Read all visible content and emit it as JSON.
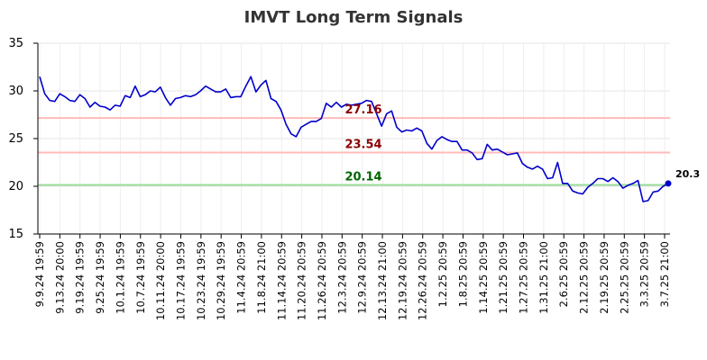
{
  "chart_data": {
    "type": "line",
    "title": "IMVT Long Term Signals",
    "xlabel": "",
    "ylabel": "",
    "ylim": [
      15,
      35
    ],
    "y_ticks": [
      15,
      20,
      25,
      30,
      35
    ],
    "grid": true,
    "line_color": "#0000cc",
    "x_tick_labels": [
      "9.9.24 19:59",
      "9.13.24 20:00",
      "9.19.24 19:59",
      "9.25.24 19:59",
      "10.1.24 19:59",
      "10.7.24 19:59",
      "10.11.24 20:00",
      "10.17.24 19:59",
      "10.23.24 19:59",
      "10.29.24 19:59",
      "11.4.24 20:59",
      "11.8.24 21:00",
      "11.14.24 20:59",
      "11.20.24 20:59",
      "11.26.24 20:59",
      "12.3.24 20:59",
      "12.9.24 20:59",
      "12.13.24 21:00",
      "12.19.24 20:59",
      "12.26.24 20:59",
      "1.2.25 20:59",
      "1.8.25 20:59",
      "1.14.25 20:59",
      "1.21.25 20:59",
      "1.27.25 20:59",
      "1.31.25 21:00",
      "2.6.25 20:59",
      "2.12.25 20:59",
      "2.19.25 20:59",
      "2.25.25 20:59",
      "3.3.25 20:59",
      "3.7.25 21:00"
    ],
    "series": [
      {
        "values": [
          31.5,
          29.7,
          29.0,
          28.9,
          29.7,
          29.4,
          29.0,
          28.9,
          29.6,
          29.2,
          28.3,
          28.8,
          28.4,
          28.3,
          28.0,
          28.5,
          28.4,
          29.5,
          29.3,
          30.5,
          29.4,
          29.6,
          30.0,
          29.9,
          30.4,
          29.3,
          28.5,
          29.2,
          29.3,
          29.5,
          29.4,
          29.6,
          30.0,
          30.5,
          30.2,
          29.9,
          29.9,
          30.2,
          29.3,
          29.4,
          29.4,
          30.5,
          31.5,
          29.9,
          30.6,
          31.1,
          29.2,
          28.9,
          28.0,
          26.5,
          25.5,
          25.2,
          26.2,
          26.5,
          26.8,
          26.8,
          27.1,
          28.7,
          28.3,
          28.8,
          28.3,
          28.6,
          28.5,
          28.6,
          28.7,
          29.0,
          28.9,
          27.6,
          26.3,
          27.6,
          27.9,
          26.2,
          25.7,
          25.9,
          25.8,
          26.1,
          25.8,
          24.5,
          23.9,
          24.8,
          25.2,
          24.9,
          24.7,
          24.7,
          23.8,
          23.8,
          23.5,
          22.8,
          22.9,
          24.4,
          23.8,
          23.9,
          23.6,
          23.3,
          23.4,
          23.5,
          22.4,
          22.0,
          21.8,
          22.1,
          21.8,
          20.8,
          20.9,
          22.5,
          20.3,
          20.3,
          19.5,
          19.3,
          19.2,
          19.9,
          20.3,
          20.8,
          20.8,
          20.5,
          20.9,
          20.5,
          19.8,
          20.1,
          20.3,
          20.6,
          18.4,
          18.5,
          19.4,
          19.5,
          20.0,
          20.3
        ]
      }
    ],
    "levels": [
      {
        "value": 27.16,
        "label": "27.16",
        "line_color": "#ffbbbb",
        "text_color": "#8b0000"
      },
      {
        "value": 23.54,
        "label": "23.54",
        "line_color": "#ffbbbb",
        "text_color": "#8b0000"
      },
      {
        "value": 20.14,
        "label": "20.14",
        "line_color": "#99dd99",
        "text_color": "#006400"
      }
    ],
    "last_value": {
      "value": 20.3,
      "label": "20.3",
      "color": "#0000cc"
    }
  }
}
